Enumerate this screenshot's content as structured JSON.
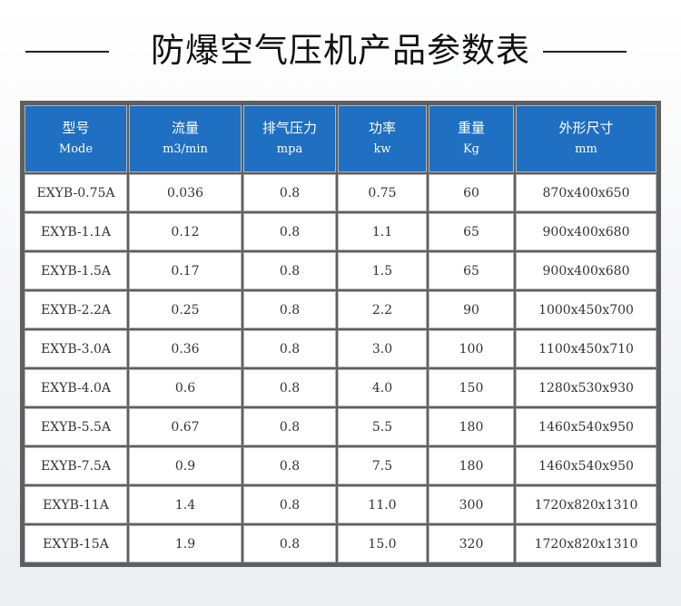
{
  "header": {
    "title": "防爆空气压机产品参数表"
  },
  "table": {
    "columns": [
      [
        "型号",
        "Mode"
      ],
      [
        "流量",
        "m3/min"
      ],
      [
        "排气压力",
        "mpa"
      ],
      [
        "功率",
        "kw"
      ],
      [
        "重量",
        "Kg"
      ],
      [
        "外形尺寸",
        "mm"
      ]
    ],
    "rows": [
      [
        "EXYB-0.75A",
        "0.036",
        "0.8",
        "0.75",
        "60",
        "870x400x650"
      ],
      [
        "EXYB-1.1A",
        "0.12",
        "0.8",
        "1.1",
        "65",
        "900x400x680"
      ],
      [
        "EXYB-1.5A",
        "0.17",
        "0.8",
        "1.5",
        "65",
        "900x400x680"
      ],
      [
        "EXYB-2.2A",
        "0.25",
        "0.8",
        "2.2",
        "90",
        "1000x450x700"
      ],
      [
        "EXYB-3.0A",
        "0.36",
        "0.8",
        "3.0",
        "100",
        "1100x450x710"
      ],
      [
        "EXYB-4.0A",
        "0.6",
        "0.8",
        "4.0",
        "150",
        "1280x530x930"
      ],
      [
        "EXYB-5.5A",
        "0.67",
        "0.8",
        "5.5",
        "180",
        "1460x540x950"
      ],
      [
        "EXYB-7.5A",
        "0.9",
        "0.8",
        "7.5",
        "180",
        "1460x540x950"
      ],
      [
        "EXYB-11A",
        "1.4",
        "0.8",
        "11.0",
        "300",
        "1720x820x1310"
      ],
      [
        "EXYB-15A",
        "1.9",
        "0.8",
        "15.0",
        "320",
        "1720x820x1310"
      ]
    ]
  }
}
